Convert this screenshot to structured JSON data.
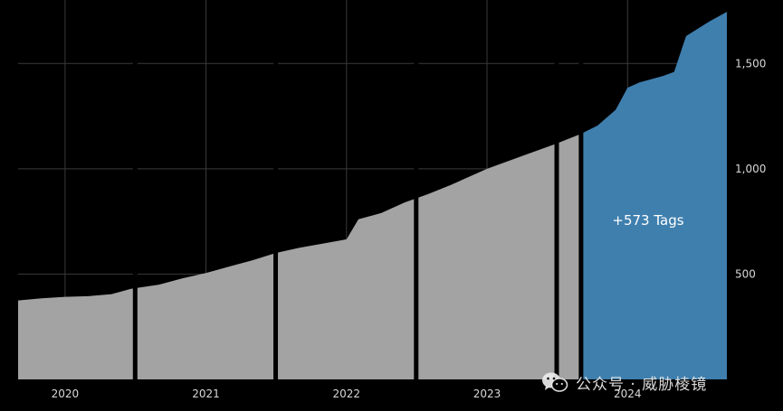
{
  "colors": {
    "background": "#000000",
    "history": "#a3a3a3",
    "highlight": "#3f7fae",
    "grid": "#3a3a3a",
    "text": "#d8d8d8"
  },
  "watermark": {
    "text": "公众号 · 威胁棱镜",
    "icon": "wechat-icon"
  },
  "chart_data": {
    "type": "area",
    "title": "",
    "xlabel": "",
    "ylabel": "",
    "x_ticks": [
      "2020",
      "2021",
      "2022",
      "2023",
      "2024"
    ],
    "y_ticks": [
      "500",
      "1,000",
      "1,500"
    ],
    "ylim": [
      0,
      1750
    ],
    "y_axis_side": "right",
    "grid": true,
    "annotation": "+573 Tags",
    "series": [
      {
        "role": "history",
        "points": [
          [
            "2019-09-01",
            375
          ],
          [
            "2019-11-01",
            385
          ],
          [
            "2020-01-01",
            392
          ],
          [
            "2020-03-01",
            395
          ],
          [
            "2020-05-01",
            405
          ],
          [
            "2020-06-20",
            430
          ],
          [
            "2020-09-01",
            450
          ],
          [
            "2020-11-01",
            480
          ],
          [
            "2021-01-01",
            505
          ],
          [
            "2021-03-01",
            535
          ],
          [
            "2021-05-01",
            565
          ],
          [
            "2021-07-01",
            600
          ],
          [
            "2021-09-01",
            625
          ],
          [
            "2021-11-01",
            645
          ],
          [
            "2022-01-01",
            665
          ],
          [
            "2022-02-01",
            760
          ],
          [
            "2022-04-01",
            790
          ],
          [
            "2022-06-01",
            840
          ],
          [
            "2022-08-01",
            880
          ],
          [
            "2022-10-01",
            925
          ],
          [
            "2023-01-01",
            1000
          ],
          [
            "2023-04-01",
            1060
          ],
          [
            "2023-07-01",
            1120
          ],
          [
            "2023-09-01",
            1165
          ]
        ]
      },
      {
        "role": "highlight",
        "points": [
          [
            "2023-09-01",
            1165
          ],
          [
            "2023-10-15",
            1205
          ],
          [
            "2023-12-01",
            1280
          ],
          [
            "2024-01-01",
            1385
          ],
          [
            "2024-02-01",
            1410
          ],
          [
            "2024-04-01",
            1440
          ],
          [
            "2024-05-01",
            1460
          ],
          [
            "2024-06-01",
            1630
          ],
          [
            "2024-08-01",
            1700
          ],
          [
            "2024-09-15",
            1745
          ]
        ]
      }
    ],
    "year_separators": [
      "2020-07-01",
      "2021-07-01",
      "2022-07-01",
      "2023-07-01"
    ]
  }
}
